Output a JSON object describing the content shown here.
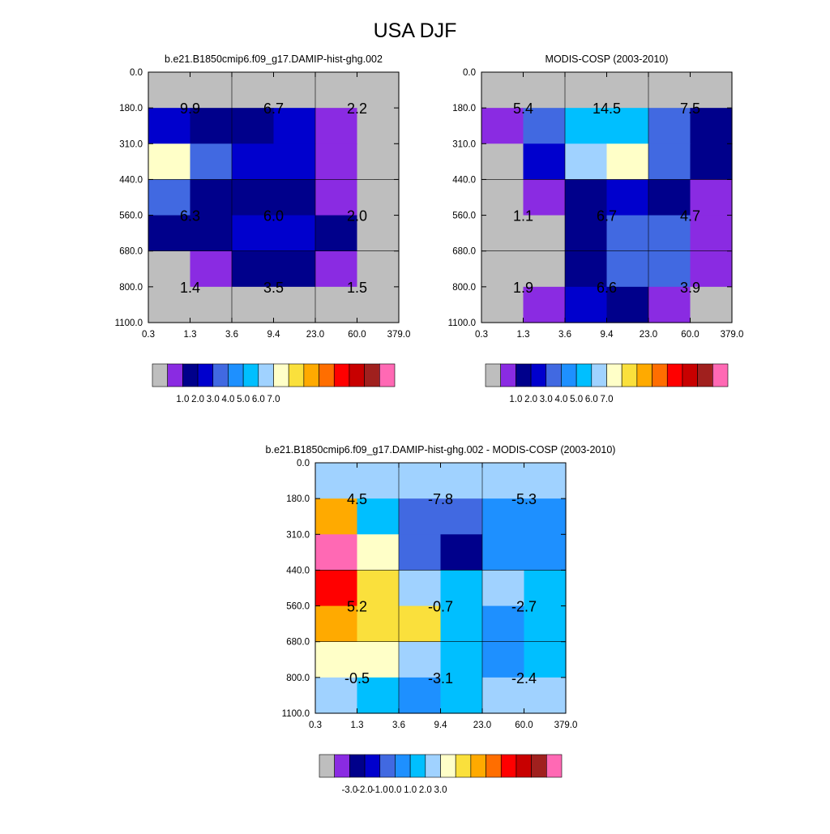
{
  "title": "USA DJF",
  "colors": {
    "missing": "#bebebe",
    "palette": [
      "#bebebe",
      "#8a2be2",
      "#00008b",
      "#0000cd",
      "#4169e1",
      "#1e90ff",
      "#00bfff",
      "#a0d2ff",
      "#ffffc8",
      "#fae03c",
      "#ffaa00",
      "#ff6e00",
      "#ff0000",
      "#c80000",
      "#a0201e",
      "#ff69b4"
    ]
  },
  "chart_data": [
    {
      "type": "heatmap",
      "title": "b.e21.B1850cmip6.f09_g17.DAMIP-hist-ghg.002",
      "xticks": [
        "0.3",
        "1.3",
        "3.6",
        "9.4",
        "23.0",
        "60.0",
        "379.0"
      ],
      "yticks": [
        "0.0",
        "180.0",
        "310.0",
        "440.0",
        "560.0",
        "680.0",
        "800.0",
        "1100.0"
      ],
      "cells": [
        [
          0,
          0,
          0,
          0,
          0,
          0
        ],
        [
          3,
          2,
          2,
          3,
          1,
          0
        ],
        [
          8,
          4,
          3,
          3,
          1,
          0
        ],
        [
          4,
          2,
          2,
          2,
          1,
          0
        ],
        [
          2,
          2,
          3,
          3,
          2,
          0
        ],
        [
          0,
          1,
          2,
          2,
          1,
          0
        ],
        [
          0,
          0,
          0,
          0,
          0,
          0
        ]
      ],
      "annotations": [
        {
          "label": "9.9",
          "col": 1,
          "row": 1
        },
        {
          "label": "6.7",
          "col": 3,
          "row": 1
        },
        {
          "label": "2.2",
          "col": 5,
          "row": 1
        },
        {
          "label": "6.3",
          "col": 1,
          "row": 4
        },
        {
          "label": "6.0",
          "col": 3,
          "row": 4
        },
        {
          "label": "2.0",
          "col": 5,
          "row": 4
        },
        {
          "label": "1.4",
          "col": 1,
          "row": 6
        },
        {
          "label": "3.5",
          "col": 3,
          "row": 6
        },
        {
          "label": "1.5",
          "col": 5,
          "row": 6
        }
      ],
      "colorbar": {
        "labels": [
          "1.0",
          "2.0",
          "3.0",
          "4.0",
          "5.0",
          "6.0",
          "7.0"
        ]
      }
    },
    {
      "type": "heatmap",
      "title": "MODIS-COSP (2003-2010)",
      "xticks": [
        "0.3",
        "1.3",
        "3.6",
        "9.4",
        "23.0",
        "60.0",
        "379.0"
      ],
      "yticks": [
        "0.0",
        "180.0",
        "310.0",
        "440.0",
        "560.0",
        "680.0",
        "800.0",
        "1100.0"
      ],
      "cells": [
        [
          0,
          0,
          0,
          0,
          0,
          0
        ],
        [
          1,
          4,
          6,
          6,
          4,
          2
        ],
        [
          0,
          3,
          7,
          8,
          4,
          2
        ],
        [
          0,
          1,
          2,
          3,
          2,
          1
        ],
        [
          0,
          0,
          2,
          4,
          4,
          1
        ],
        [
          0,
          0,
          2,
          4,
          4,
          1
        ],
        [
          0,
          1,
          3,
          2,
          1,
          0
        ]
      ],
      "annotations": [
        {
          "label": "5.4",
          "col": 1,
          "row": 1
        },
        {
          "label": "14.5",
          "col": 3,
          "row": 1
        },
        {
          "label": "7.5",
          "col": 5,
          "row": 1
        },
        {
          "label": "1.1",
          "col": 1,
          "row": 4
        },
        {
          "label": "6.7",
          "col": 3,
          "row": 4
        },
        {
          "label": "4.7",
          "col": 5,
          "row": 4
        },
        {
          "label": "1.9",
          "col": 1,
          "row": 6
        },
        {
          "label": "6.6",
          "col": 3,
          "row": 6
        },
        {
          "label": "3.9",
          "col": 5,
          "row": 6
        }
      ],
      "colorbar": {
        "labels": [
          "1.0",
          "2.0",
          "3.0",
          "4.0",
          "5.0",
          "6.0",
          "7.0"
        ]
      }
    },
    {
      "type": "heatmap",
      "title": "b.e21.B1850cmip6.f09_g17.DAMIP-hist-ghg.002 - MODIS-COSP (2003-2010)",
      "xticks": [
        "0.3",
        "1.3",
        "3.6",
        "9.4",
        "23.0",
        "60.0",
        "379.0"
      ],
      "yticks": [
        "0.0",
        "180.0",
        "310.0",
        "440.0",
        "560.0",
        "680.0",
        "800.0",
        "1100.0"
      ],
      "cells": [
        [
          7,
          7,
          7,
          7,
          7,
          7
        ],
        [
          10,
          6,
          4,
          4,
          5,
          5
        ],
        [
          15,
          8,
          4,
          2,
          5,
          5
        ],
        [
          12,
          9,
          7,
          6,
          7,
          6
        ],
        [
          10,
          9,
          9,
          6,
          5,
          6
        ],
        [
          8,
          8,
          7,
          6,
          5,
          6
        ],
        [
          7,
          6,
          5,
          6,
          7,
          7
        ]
      ],
      "annotations": [
        {
          "label": "4.5",
          "col": 1,
          "row": 1
        },
        {
          "label": "-7.8",
          "col": 3,
          "row": 1
        },
        {
          "label": "-5.3",
          "col": 5,
          "row": 1
        },
        {
          "label": "5.2",
          "col": 1,
          "row": 4
        },
        {
          "label": "-0.7",
          "col": 3,
          "row": 4
        },
        {
          "label": "-2.7",
          "col": 5,
          "row": 4
        },
        {
          "label": "-0.5",
          "col": 1,
          "row": 6
        },
        {
          "label": "-3.1",
          "col": 3,
          "row": 6
        },
        {
          "label": "-2.4",
          "col": 5,
          "row": 6
        }
      ],
      "colorbar": {
        "labels": [
          "-3.0",
          "-2.0",
          "-1.0",
          "0.0",
          "1.0",
          "2.0",
          "3.0"
        ]
      }
    }
  ]
}
